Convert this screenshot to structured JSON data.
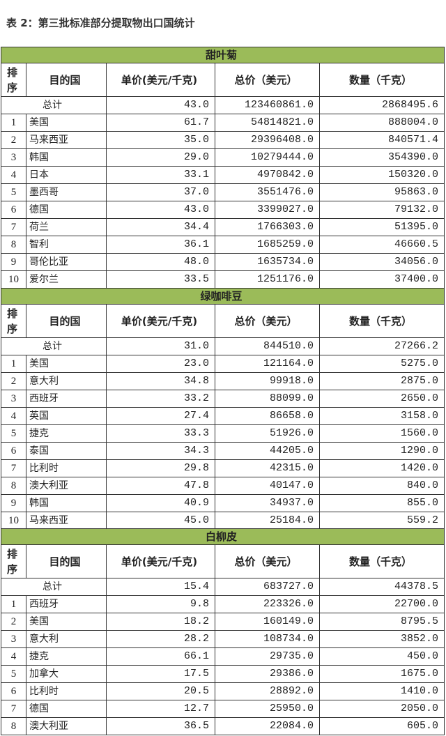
{
  "title": "表 2：第三批标准部分提取物出口国统计",
  "columns": {
    "rank": "排序",
    "country": "目的国",
    "unit_price": "单价(美元/千克)",
    "total_price": "总价（美元）",
    "quantity": "数量（千克）"
  },
  "total_label": "总计",
  "header_color": "#9bbb59",
  "sections": [
    {
      "name": "甜叶菊",
      "total": [
        "43.0",
        "123460861.0",
        "2868495.6"
      ],
      "rows": [
        [
          "1",
          "美国",
          "61.7",
          "54814821.0",
          "888004.0"
        ],
        [
          "2",
          "马来西亚",
          "35.0",
          "29396408.0",
          "840571.4"
        ],
        [
          "3",
          "韩国",
          "29.0",
          "10279444.0",
          "354390.0"
        ],
        [
          "4",
          "日本",
          "33.1",
          "4970842.0",
          "150320.0"
        ],
        [
          "5",
          "墨西哥",
          "37.0",
          "3551476.0",
          "95863.0"
        ],
        [
          "6",
          "德国",
          "43.0",
          "3399027.0",
          "79132.0"
        ],
        [
          "7",
          "荷兰",
          "34.4",
          "1766303.0",
          "51395.0"
        ],
        [
          "8",
          "智利",
          "36.1",
          "1685259.0",
          "46660.5"
        ],
        [
          "9",
          "哥伦比亚",
          "48.0",
          "1635734.0",
          "34056.0"
        ],
        [
          "10",
          "爱尔兰",
          "33.5",
          "1251176.0",
          "37400.0"
        ]
      ]
    },
    {
      "name": "绿咖啡豆",
      "total": [
        "31.0",
        "844510.0",
        "27266.2"
      ],
      "rows": [
        [
          "1",
          "美国",
          "23.0",
          "121164.0",
          "5275.0"
        ],
        [
          "2",
          "意大利",
          "34.8",
          "99918.0",
          "2875.0"
        ],
        [
          "3",
          "西班牙",
          "33.2",
          "88099.0",
          "2650.0"
        ],
        [
          "4",
          "英国",
          "27.4",
          "86658.0",
          "3158.0"
        ],
        [
          "5",
          "捷克",
          "33.3",
          "51926.0",
          "1560.0"
        ],
        [
          "6",
          "泰国",
          "34.3",
          "44205.0",
          "1290.0"
        ],
        [
          "7",
          "比利时",
          "29.8",
          "42315.0",
          "1420.0"
        ],
        [
          "8",
          "澳大利亚",
          "47.8",
          "40147.0",
          "840.0"
        ],
        [
          "9",
          "韩国",
          "40.9",
          "34937.0",
          "855.0"
        ],
        [
          "10",
          "马来西亚",
          "45.0",
          "25184.0",
          "559.2"
        ]
      ]
    },
    {
      "name": "白柳皮",
      "total": [
        "15.4",
        "683727.0",
        "44378.5"
      ],
      "rows": [
        [
          "1",
          "西班牙",
          "9.8",
          "223326.0",
          "22700.0"
        ],
        [
          "2",
          "美国",
          "18.2",
          "160149.0",
          "8795.5"
        ],
        [
          "3",
          "意大利",
          "28.2",
          "108734.0",
          "3852.0"
        ],
        [
          "4",
          "捷克",
          "66.1",
          "29735.0",
          "450.0"
        ],
        [
          "5",
          "加拿大",
          "17.5",
          "29386.0",
          "1675.0"
        ],
        [
          "6",
          "比利时",
          "20.5",
          "28892.0",
          "1410.0"
        ],
        [
          "7",
          "德国",
          "12.7",
          "25950.0",
          "2050.0"
        ],
        [
          "8",
          "澳大利亚",
          "36.5",
          "22084.0",
          "605.0"
        ]
      ]
    }
  ]
}
